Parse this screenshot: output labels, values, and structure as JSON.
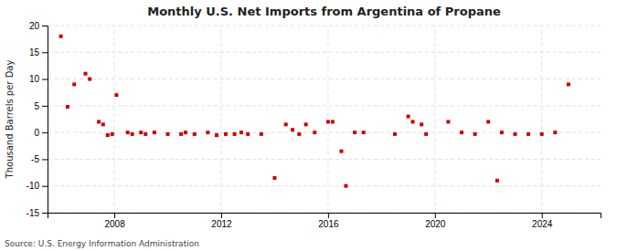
{
  "chart_data": {
    "type": "scatter",
    "title": "Monthly U.S. Net Imports from Argentina of Propane",
    "ylabel": "Thousand Barrels per Day",
    "annotations": [
      "Source: U.S. Energy Information Administration"
    ],
    "x": [
      2006.0,
      2006.25,
      2006.5,
      2006.92,
      2007.08,
      2007.42,
      2007.58,
      2007.75,
      2007.92,
      2008.08,
      2008.5,
      2008.67,
      2009.0,
      2009.17,
      2009.5,
      2010.0,
      2010.5,
      2010.67,
      2011.0,
      2011.5,
      2011.83,
      2012.17,
      2012.5,
      2012.75,
      2013.0,
      2013.5,
      2014.0,
      2014.42,
      2014.67,
      2014.92,
      2015.17,
      2015.5,
      2016.0,
      2016.17,
      2016.5,
      2016.67,
      2017.0,
      2017.33,
      2018.5,
      2019.0,
      2019.17,
      2019.5,
      2019.67,
      2020.5,
      2021.0,
      2021.5,
      2022.0,
      2022.33,
      2022.5,
      2023.0,
      2023.5,
      2024.0,
      2024.5,
      2025.0
    ],
    "values": [
      18.0,
      4.8,
      9.0,
      11.0,
      10.0,
      2.0,
      1.5,
      -0.5,
      -0.3,
      7.0,
      0.0,
      -0.3,
      0.0,
      -0.3,
      0.0,
      -0.3,
      -0.3,
      0.0,
      -0.3,
      0.0,
      -0.5,
      -0.3,
      -0.3,
      0.0,
      -0.3,
      -0.3,
      -8.5,
      1.5,
      0.5,
      -0.3,
      1.5,
      0.0,
      2.0,
      2.0,
      -3.5,
      -10.0,
      0.0,
      0.0,
      -0.3,
      3.0,
      2.0,
      1.5,
      -0.3,
      2.0,
      0.0,
      -0.3,
      2.0,
      -9.0,
      0.0,
      -0.3,
      -0.3,
      -0.3,
      0.0,
      9.0
    ],
    "color": "#cc0000",
    "marker": "square",
    "xlim": [
      2005.5,
      2026.2
    ],
    "xticks": [
      2008,
      2012,
      2016,
      2020,
      2024
    ],
    "ylim": [
      -15,
      20
    ],
    "yticks": [
      -15,
      -10,
      -5,
      0,
      5,
      10,
      15,
      20
    ],
    "grid": true
  }
}
